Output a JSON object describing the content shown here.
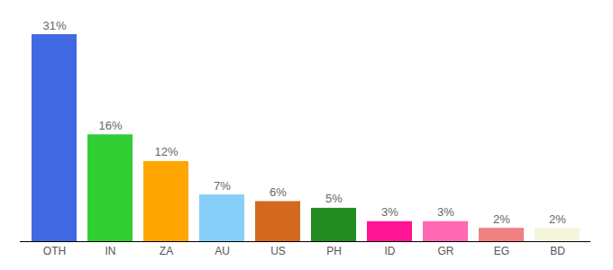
{
  "chart_data": {
    "type": "bar",
    "categories": [
      "OTH",
      "IN",
      "ZA",
      "AU",
      "US",
      "PH",
      "ID",
      "GR",
      "EG",
      "BD"
    ],
    "values": [
      31,
      16,
      12,
      7,
      6,
      5,
      3,
      3,
      2,
      2
    ],
    "value_labels": [
      "31%",
      "16%",
      "12%",
      "7%",
      "6%",
      "5%",
      "3%",
      "3%",
      "2%",
      "2%"
    ],
    "colors": [
      "#4169e1",
      "#32cd32",
      "#ffa500",
      "#87cefa",
      "#d2691e",
      "#228b22",
      "#ff1493",
      "#ff69b4",
      "#f08080",
      "#f5f5dc"
    ],
    "ylim": [
      0,
      31
    ],
    "data_labels": true,
    "tick_labels": "x",
    "grid": false
  }
}
